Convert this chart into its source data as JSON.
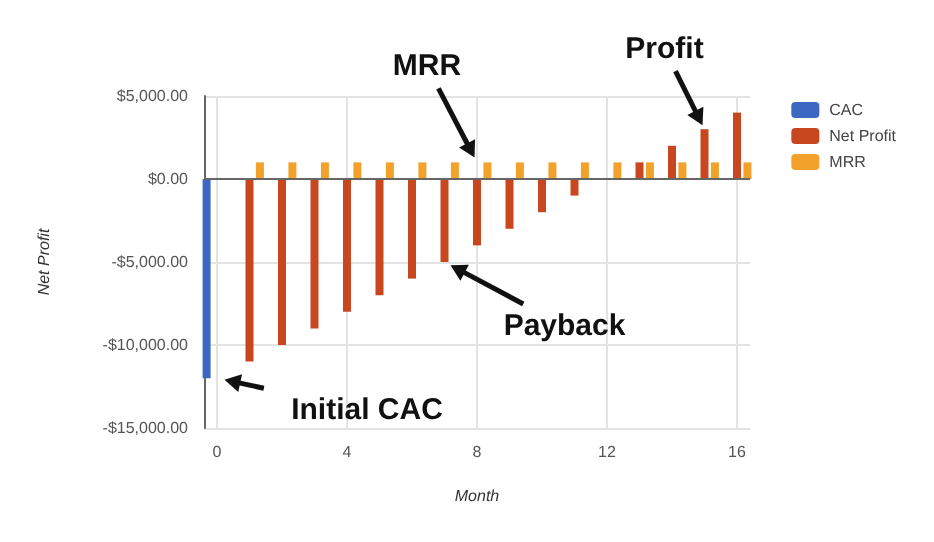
{
  "chart_data": {
    "type": "bar",
    "xlabel": "Month",
    "ylabel": "Net Profit",
    "series": [
      {
        "name": "CAC",
        "color": "#3c68c2",
        "x": [
          0
        ],
        "values": [
          -12000
        ]
      },
      {
        "name": "Net Profit",
        "color": "#c8471f",
        "x": [
          1,
          2,
          3,
          4,
          5,
          6,
          7,
          8,
          9,
          10,
          11,
          12,
          13,
          14,
          15,
          16
        ],
        "values": [
          -11000,
          -10000,
          -9000,
          -8000,
          -7000,
          -6000,
          -5000,
          -4000,
          -3000,
          -2000,
          -1000,
          0,
          1000,
          2000,
          3000,
          4000
        ]
      },
      {
        "name": "MRR",
        "color": "#f2a12b",
        "x": [
          1,
          2,
          3,
          4,
          5,
          6,
          7,
          8,
          9,
          10,
          11,
          12,
          13,
          14,
          15,
          16
        ],
        "values": [
          1000,
          1000,
          1000,
          1000,
          1000,
          1000,
          1000,
          1000,
          1000,
          1000,
          1000,
          1000,
          1000,
          1000,
          1000,
          1000
        ]
      }
    ],
    "xlim": [
      -0.4,
      16.4
    ],
    "xticks": [
      0,
      4,
      8,
      12,
      16
    ],
    "ylim": [
      -15000,
      5000
    ],
    "yticks": [
      {
        "value": -15000,
        "label": "-$15,000.00"
      },
      {
        "value": -10000,
        "label": "-$10,000.00"
      },
      {
        "value": -5000,
        "label": "-$5,000.00"
      },
      {
        "value": 0,
        "label": "$0.00"
      },
      {
        "value": 5000,
        "label": "$5,000.00"
      }
    ],
    "grid": true,
    "legend": "top right",
    "annotations": [
      {
        "text": "Initial CAC",
        "x": 0,
        "y": -12000
      },
      {
        "text": "Payback",
        "x": 7,
        "y": -5000
      },
      {
        "text": "MRR",
        "x": 8,
        "y": 1000
      },
      {
        "text": "Profit",
        "x": 15,
        "y": 3000
      }
    ]
  }
}
